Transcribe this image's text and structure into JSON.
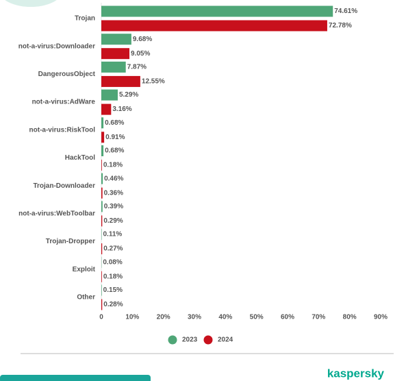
{
  "chart_data": {
    "type": "hbar",
    "categories": [
      "Trojan",
      "not-a-virus:Downloader",
      "DangerousObject",
      "not-a-virus:AdWare",
      "not-a-virus:RiskTool",
      "HackTool",
      "Trojan-Downloader",
      "not-a-virus:WebToolbar",
      "Trojan-Dropper",
      "Exploit",
      "Other"
    ],
    "series": [
      {
        "name": "2023",
        "color": "#4fa677",
        "values": [
          74.61,
          9.68,
          7.87,
          5.29,
          0.68,
          0.68,
          0.46,
          0.39,
          0.11,
          0.08,
          0.15
        ],
        "value_labels": [
          "74.61%",
          "9.68%",
          "7.87%",
          "5.29%",
          "0.68%",
          "0.68%",
          "0.46%",
          "0.39%",
          "0.11%",
          "0.08%",
          "0.15%"
        ]
      },
      {
        "name": "2024",
        "color": "#c8101c",
        "values": [
          72.78,
          9.05,
          12.55,
          3.16,
          0.91,
          0.18,
          0.36,
          0.29,
          0.27,
          0.18,
          0.28
        ],
        "value_labels": [
          "72.78%",
          "9.05%",
          "12.55%",
          "3.16%",
          "0.91%",
          "0.18%",
          "0.36%",
          "0.29%",
          "0.27%",
          "0.18%",
          "0.28%"
        ]
      }
    ],
    "xlim": [
      0,
      90
    ],
    "xticks": [
      0,
      {
        "value": 10,
        "label": "10%"
      },
      {
        "value": 20,
        "label": "20%"
      },
      {
        "value": 30,
        "label": "30%"
      },
      {
        "value": 40,
        "label": "40%"
      },
      {
        "value": 50,
        "label": "50%"
      },
      {
        "value": 60,
        "label": "60%"
      },
      {
        "value": 70,
        "label": "70%"
      },
      {
        "value": 80,
        "label": "80%"
      },
      {
        "value": 90,
        "label": "90%"
      }
    ],
    "grid": false,
    "legend": "bottom"
  },
  "brand": "kaspersky"
}
